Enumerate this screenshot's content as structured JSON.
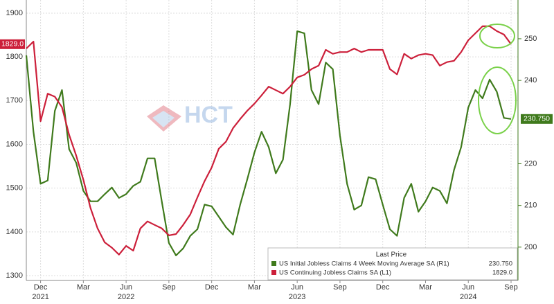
{
  "chart_data": {
    "type": "line",
    "watermark": "HCT",
    "legend_title": "Last Price",
    "categories": [
      null,
      null,
      "Dec",
      null,
      null,
      null,
      null,
      null,
      "Mar",
      null,
      null,
      null,
      null,
      null,
      "Jun",
      null,
      null,
      null,
      null,
      null,
      "Sep",
      null,
      null,
      null,
      null,
      null,
      "Dec",
      null,
      null,
      null,
      null,
      null,
      "Mar",
      null,
      null,
      null,
      null,
      null,
      "Jun",
      null,
      null,
      null,
      null,
      null,
      "Sep",
      null,
      null,
      null,
      null,
      null,
      "Dec",
      null,
      null,
      null,
      null,
      null,
      "Mar",
      null,
      null,
      null,
      null,
      null,
      "Jun",
      null,
      null,
      null,
      null,
      null,
      "Sep"
    ],
    "category_years": [
      null,
      null,
      "2021",
      null,
      null,
      null,
      null,
      null,
      null,
      null,
      null,
      null,
      null,
      null,
      "2022",
      null,
      null,
      null,
      null,
      null,
      null,
      null,
      null,
      null,
      null,
      null,
      null,
      null,
      null,
      null,
      null,
      null,
      null,
      null,
      null,
      null,
      null,
      null,
      "2023",
      null,
      null,
      null,
      null,
      null,
      null,
      null,
      null,
      null,
      null,
      null,
      null,
      null,
      null,
      null,
      null,
      null,
      null,
      null,
      null,
      null,
      null,
      null,
      "2024",
      null,
      null,
      null,
      null,
      null,
      null
    ],
    "series": [
      {
        "name": "US Initial Jobless Claims 4 Week Moving Average SA  (R1)",
        "color": "#3f7a1c",
        "axis": "y2",
        "values": [
          246,
          227.7,
          215.2,
          216,
          232.7,
          237.7,
          223.5,
          220.2,
          213.5,
          211,
          211,
          212.7,
          214.3,
          211.8,
          212.7,
          214.7,
          215.7,
          221.3,
          221.3,
          211,
          201,
          198,
          199.7,
          202.7,
          204.3,
          210.2,
          209.8,
          207.3,
          204.8,
          203,
          210.2,
          216.3,
          222.7,
          227.7,
          224,
          217.7,
          221,
          234.3,
          251.8,
          251.3,
          237.7,
          234.3,
          244.3,
          242.7,
          226.8,
          215.2,
          209,
          210,
          216.8,
          216.3,
          210.2,
          204.3,
          202.7,
          211.8,
          215.2,
          208.5,
          211,
          214.3,
          213.5,
          210.5,
          218.5,
          224,
          233.5,
          237.7,
          235.7,
          240.2,
          237.3,
          231,
          230.75
        ],
        "value_labels": [
          null,
          null,
          null,
          null,
          null,
          null,
          null,
          null,
          null,
          null,
          null,
          null,
          null,
          null,
          null,
          null,
          null,
          null,
          null,
          null,
          null,
          null,
          null,
          null,
          null,
          null,
          null,
          null,
          null,
          null,
          null,
          null,
          null,
          null,
          null,
          null,
          null,
          null,
          null,
          null,
          null,
          null,
          null,
          null,
          null,
          null,
          null,
          null,
          null,
          null,
          null,
          null,
          null,
          null,
          null,
          null,
          null,
          null,
          null,
          null,
          null,
          null,
          null,
          null,
          null,
          null,
          null,
          null,
          "230.750"
        ]
      },
      {
        "name": "US Continuing Jobless Claims SA  (L1)",
        "color": "#cc1f3a",
        "axis": "y",
        "values": [
          1819,
          1835,
          1653,
          1716,
          1709,
          1685,
          1622,
          1574,
          1519,
          1455,
          1408,
          1376,
          1364,
          1348,
          1368,
          1357,
          1408,
          1424,
          1416,
          1408,
          1392,
          1395,
          1416,
          1440,
          1479,
          1516,
          1547,
          1590,
          1606,
          1637,
          1658,
          1677,
          1693,
          1712,
          1732,
          1724,
          1716,
          1732,
          1753,
          1759,
          1772,
          1780,
          1816,
          1807,
          1811,
          1811,
          1819,
          1811,
          1816,
          1816,
          1816,
          1772,
          1760,
          1807,
          1796,
          1804,
          1807,
          1804,
          1780,
          1788,
          1791,
          1811,
          1838,
          1854,
          1870,
          1870,
          1859,
          1851,
          1829
        ],
        "value_labels": [
          null,
          null,
          null,
          null,
          null,
          null,
          null,
          null,
          null,
          null,
          null,
          null,
          null,
          null,
          null,
          null,
          null,
          null,
          null,
          null,
          null,
          null,
          null,
          null,
          null,
          null,
          null,
          null,
          null,
          null,
          null,
          null,
          null,
          null,
          null,
          null,
          null,
          null,
          null,
          null,
          null,
          null,
          null,
          null,
          null,
          null,
          null,
          null,
          null,
          null,
          null,
          null,
          null,
          null,
          null,
          null,
          null,
          null,
          null,
          null,
          null,
          null,
          null,
          null,
          null,
          null,
          null,
          null,
          "1829.0"
        ]
      }
    ],
    "ylim": [
      1289,
      1930
    ],
    "yticks": [
      1300,
      1400,
      1500,
      1600,
      1700,
      1800,
      1900
    ],
    "y2lim": [
      192,
      259.3
    ],
    "y2ticks": [
      200,
      210,
      220,
      240,
      250
    ],
    "grid": true
  }
}
